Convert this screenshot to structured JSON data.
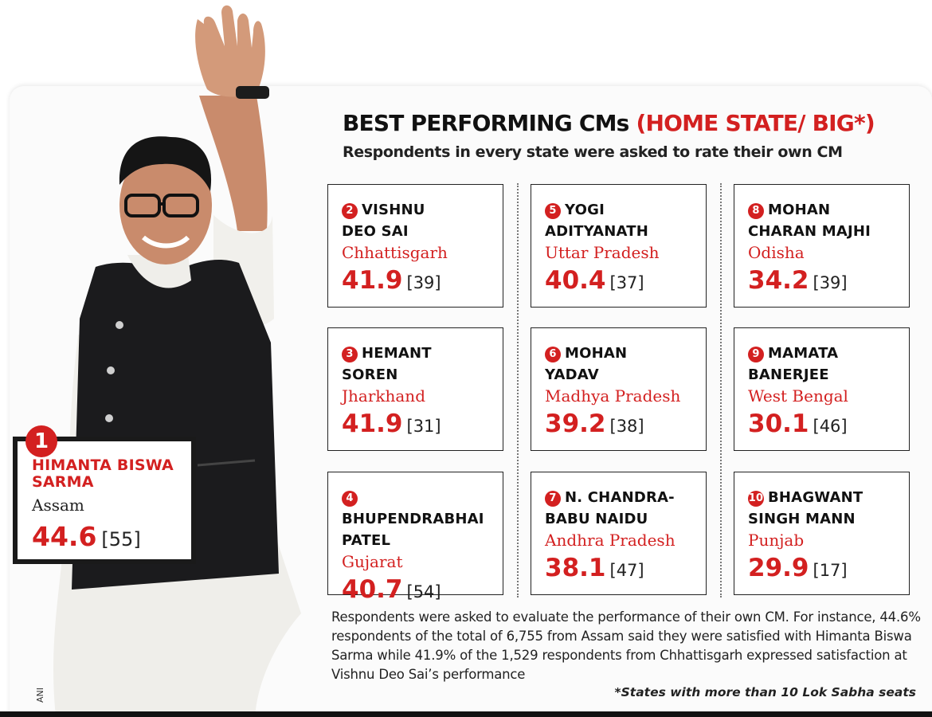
{
  "header": {
    "title": "BEST PERFORMING CMs",
    "title_highlight": "(HOME STATE/ BIG*)",
    "subtitle": "Respondents in every state were asked to rate their own CM"
  },
  "featured": {
    "rank": "1",
    "name": "HIMANTA BISWA SARMA",
    "state": "Assam",
    "score": "44.6",
    "bracket": "[55]"
  },
  "grid": [
    {
      "rank": "2",
      "name1": "VISHNU",
      "name2": "DEO SAI",
      "state": "Chhattisgarh",
      "score": "41.9",
      "bracket": "[39]"
    },
    {
      "rank": "5",
      "name1": "YOGI",
      "name2": "ADITYANATH",
      "state": "Uttar Pradesh",
      "score": "40.4",
      "bracket": "[37]"
    },
    {
      "rank": "8",
      "name1": "MOHAN",
      "name2": "CHARAN MAJHI",
      "state": "Odisha",
      "score": "34.2",
      "bracket": "[39]"
    },
    {
      "rank": "3",
      "name1": "HEMANT",
      "name2": "SOREN",
      "state": "Jharkhand",
      "score": "41.9",
      "bracket": "[31]"
    },
    {
      "rank": "6",
      "name1": "MOHAN",
      "name2": "YADAV",
      "state": "Madhya Pradesh",
      "score": "39.2",
      "bracket": "[38]"
    },
    {
      "rank": "9",
      "name1": "MAMATA",
      "name2": "BANERJEE",
      "state": "West Bengal",
      "score": "30.1",
      "bracket": "[46]"
    },
    {
      "rank": "4",
      "name1": "BHUPENDRABHAI",
      "name2": "PATEL",
      "state": "Gujarat",
      "score": "40.7",
      "bracket": "[54]"
    },
    {
      "rank": "7",
      "name1": "N. CHANDRA-",
      "name2": "BABU NAIDU",
      "state": "Andhra Pradesh",
      "score": "38.1",
      "bracket": "[47]"
    },
    {
      "rank": "10",
      "name1": "BHAGWANT",
      "name2": "SINGH MANN",
      "state": "Punjab",
      "score": "29.9",
      "bracket": "[17]"
    }
  ],
  "note": "Respondents were asked to evaluate the performance of their own CM. For instance, 44.6% respondents of the total of 6,755 from Assam said they were satisfied with Himanta Biswa Sarma while 41.9% of the 1,529 respondents from Chhattisgarh expressed satisfaction at Vishnu Deo Sai’s performance",
  "footnote": "*States with more than 10 Lok Sabha seats",
  "credit": "ANI",
  "colors": {
    "accent": "#d32020",
    "text": "#111111"
  },
  "icons": {
    "person": "person-waving-photo"
  }
}
